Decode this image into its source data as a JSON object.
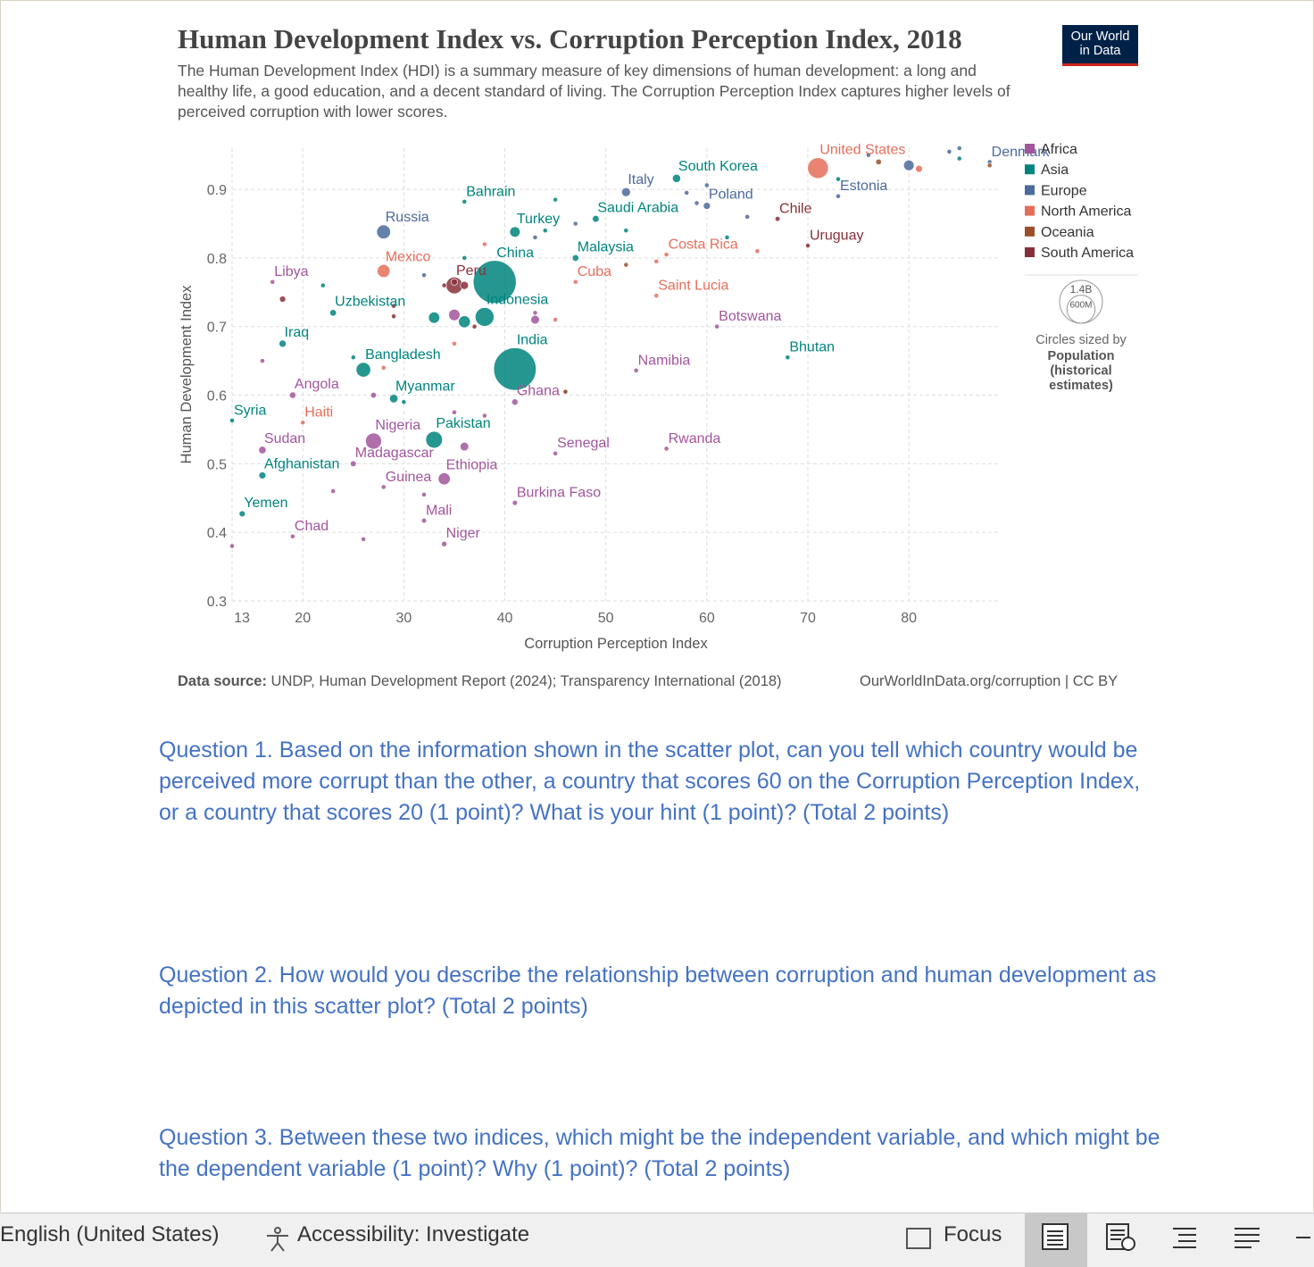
{
  "chart_data": {
    "type": "scatter",
    "title": "Human Development Index vs. Corruption Perception Index, 2018",
    "subtitle": "The Human Development Index (HDI) is a summary measure of key dimensions of human development: a long and healthy life, a good education, and a decent standard of living. The Corruption Perception Index captures higher levels of perceived corruption with lower scores.",
    "logo": [
      "Our World",
      "in Data"
    ],
    "x_label": "Corruption Perception Index",
    "y_label": "Human Development Index",
    "xlim": [
      13,
      89
    ],
    "ylim": [
      0.3,
      0.96
    ],
    "xticks": [
      13,
      20,
      30,
      40,
      50,
      60,
      70,
      80
    ],
    "yticks": [
      0.3,
      0.4,
      0.5,
      0.6,
      0.7,
      0.8,
      0.9
    ],
    "grid": true,
    "legend": "right",
    "size_legend": {
      "values": [
        {
          "value": 1400000000,
          "label": "1.4B"
        },
        {
          "value": 600000000,
          "label": "600M"
        }
      ],
      "title": "Circles sized by",
      "label": "Population (historical estimates)"
    },
    "source_label": "Data source:",
    "source": "UNDP, Human Development Report (2024); Transparency International (2018)",
    "url": "OurWorldInData.org/corruption | CC BY",
    "series": [
      {
        "name": "Africa",
        "color": "#a2559c",
        "labels": [
          "Libya",
          "Angola",
          "Sudan",
          "Chad",
          "Nigeria",
          "Madagascar",
          "Ethiopia",
          "Guinea",
          "Mali",
          "Niger",
          "Ghana",
          "Senegal",
          "Burkina Faso",
          "Namibia",
          "Rwanda",
          "Botswana",
          null,
          null,
          null,
          null,
          null,
          null,
          null,
          null,
          null,
          null,
          null,
          null,
          null
        ],
        "x": [
          17,
          19,
          16,
          19,
          27,
          25,
          34,
          28,
          32,
          34,
          41,
          45,
          41,
          53,
          56,
          61,
          13,
          16,
          26,
          23,
          27,
          35,
          36,
          38,
          43,
          46,
          32,
          35,
          43
        ],
        "values": [
          0.765,
          0.6,
          0.52,
          0.394,
          0.533,
          0.5,
          0.478,
          0.466,
          0.417,
          0.383,
          0.59,
          0.515,
          0.443,
          0.636,
          0.522,
          0.7,
          0.38,
          0.65,
          0.39,
          0.46,
          0.6,
          0.717,
          0.525,
          0.57,
          0.72,
          0.605,
          0.455,
          0.575,
          0.71
        ],
        "sizes": [
          6700000,
          31000000,
          42000000,
          15000000,
          196000000,
          26000000,
          109000000,
          12000000,
          19000000,
          22000000,
          30000000,
          16000000,
          20000000,
          2400000,
          12000000,
          2300000,
          4000000,
          5000000,
          11000000,
          10000000,
          25000000,
          98000000,
          56000000,
          10000000,
          5700000,
          10000000,
          8000000,
          7000000,
          57000000
        ]
      },
      {
        "name": "Asia",
        "color": "#00847e",
        "labels": [
          "South Korea",
          "Bahrain",
          "Saudi Arabia",
          "Turkey",
          "China",
          "Malaysia",
          "Indonesia",
          "India",
          "Bangladesh",
          "Myanmar",
          "Pakistan",
          "Uzbekistan",
          "Iraq",
          "Syria",
          "Afghanistan",
          "Yemen",
          "Bhutan",
          null,
          null,
          null,
          null,
          null,
          null,
          null,
          null,
          null,
          null,
          null,
          null
        ],
        "x": [
          57,
          36,
          49,
          41,
          39,
          47,
          38,
          41,
          26,
          29,
          33,
          23,
          18,
          13,
          16,
          14,
          68,
          73,
          36,
          33,
          36,
          22,
          25,
          30,
          44,
          52,
          62,
          85,
          45
        ],
        "values": [
          0.916,
          0.882,
          0.857,
          0.838,
          0.765,
          0.8,
          0.714,
          0.638,
          0.637,
          0.595,
          0.535,
          0.72,
          0.675,
          0.563,
          0.483,
          0.427,
          0.655,
          0.915,
          0.8,
          0.713,
          0.707,
          0.76,
          0.655,
          0.59,
          0.84,
          0.84,
          0.83,
          0.945,
          0.885
        ],
        "sizes": [
          51000000,
          1500000,
          34000000,
          82000000,
          1400000000,
          32000000,
          267000000,
          1370000000,
          161000000,
          54000000,
          212000000,
          33000000,
          38000000,
          17000000,
          37000000,
          28000000,
          750000,
          8900000,
          3000000,
          95000000,
          107000000,
          3000000,
          7000000,
          9000000,
          4000000,
          9000000,
          4000000,
          5600000,
          3000000
        ]
      },
      {
        "name": "Europe",
        "color": "#4c6a9c",
        "labels": [
          "Italy",
          "Poland",
          "Denmark",
          "Estonia",
          "Russia",
          null,
          null,
          null,
          null,
          null,
          null,
          null,
          null,
          null,
          null,
          null
        ],
        "x": [
          52,
          60,
          88,
          73,
          28,
          58,
          59,
          60,
          80,
          76,
          84,
          32,
          43,
          47,
          64,
          85
        ],
        "values": [
          0.896,
          0.876,
          0.94,
          0.89,
          0.838,
          0.895,
          0.88,
          0.906,
          0.935,
          0.95,
          0.955,
          0.775,
          0.83,
          0.85,
          0.86,
          0.96
        ],
        "sizes": [
          60000000,
          38000000,
          5800000,
          1300000,
          145000000,
          4700000,
          10000000,
          5000000,
          83000000,
          5000000,
          5000000,
          4000000,
          4000000,
          10000000,
          2000000,
          5000000
        ]
      },
      {
        "name": "North America",
        "color": "#e56e5a",
        "labels": [
          "United States",
          "Mexico",
          "Costa Rica",
          "Cuba",
          "Saint Lucia",
          "Haiti",
          null,
          null,
          null,
          null,
          null,
          null,
          null
        ],
        "x": [
          71,
          28,
          56,
          47,
          55,
          20,
          81,
          38,
          35,
          55,
          65,
          28,
          45
        ],
        "values": [
          0.931,
          0.781,
          0.805,
          0.765,
          0.745,
          0.56,
          0.93,
          0.82,
          0.675,
          0.795,
          0.81,
          0.64,
          0.71
        ],
        "sizes": [
          327000000,
          126000000,
          5000000,
          11000000,
          180000,
          11000000,
          37000000,
          3000000,
          9000000,
          100000,
          300000,
          9000000,
          1000000
        ]
      },
      {
        "name": "Oceania",
        "color": "#9a5129",
        "labels": [
          null,
          null,
          null,
          null
        ],
        "x": [
          88,
          77,
          52,
          46
        ],
        "values": [
          0.935,
          0.94,
          0.79,
          0.605
        ],
        "sizes": [
          4800000,
          25000000,
          100000,
          100000
        ]
      },
      {
        "name": "South America",
        "color": "#883039",
        "labels": [
          "Peru",
          "Chile",
          "Uruguay",
          null,
          null,
          null,
          null,
          null,
          null,
          null
        ],
        "x": [
          35,
          67,
          70,
          35,
          36,
          18,
          29,
          34,
          29,
          37
        ],
        "values": [
          0.765,
          0.857,
          0.818,
          0.76,
          0.76,
          0.74,
          0.715,
          0.76,
          0.73,
          0.7
        ],
        "sizes": [
          32000000,
          19000000,
          3500000,
          210000000,
          49000000,
          29000000,
          11000000,
          17000000,
          7000000,
          800000
        ]
      }
    ]
  },
  "questions": [
    "Question 1. Based on the information shown in the scatter plot, can you tell which country would be perceived more corrupt than the other, a country that scores 60 on the Corruption Perception Index, or a country that scores 20 (1 point)? What is your hint (1 point)? (Total 2 points)",
    "Question 2. How would you describe the relationship between corruption and human development as depicted in this scatter plot? (Total 2 points)",
    "Question 3. Between these two indices, which might be the independent variable, and which might be the dependent variable (1 point)? Why (1 point)? (Total 2 points)"
  ],
  "status_bar": {
    "language": "English (United States)",
    "accessibility": "Accessibility: Investigate",
    "focus": "Focus"
  }
}
